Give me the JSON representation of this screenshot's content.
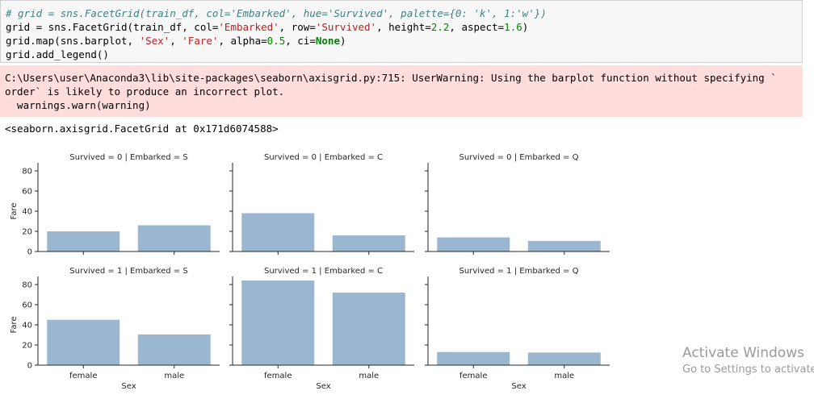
{
  "cell": {
    "comment": "# grid = sns.FacetGrid(train_df, col='Embarked', hue='Survived', palette={0: 'k', 1:'w'})",
    "line2a": "grid = sns.FacetGrid(train_df, col=",
    "line2b": "'Embarked'",
    "line2c": ", row=",
    "line2d": "'Survived'",
    "line2e": ", height=",
    "line2f": "2.2",
    "line2g": ", aspect=",
    "line2h": "1.6",
    "line2i": ")",
    "line3a": "grid.map(sns.barplot, ",
    "line3b": "'Sex'",
    "line3c": ", ",
    "line3d": "'Fare'",
    "line3e": ", alpha=",
    "line3f": "0.5",
    "line3g": ", ci=",
    "line3h": "None",
    "line3i": ")",
    "line4": "grid.add_legend()"
  },
  "warning": {
    "line1": "C:\\Users\\user\\Anaconda3\\lib\\site-packages\\seaborn\\axisgrid.py:715: UserWarning: Using the barplot function without specifying `",
    "line2": "order` is likely to produce an incorrect plot.",
    "line3": "  warnings.warn(warning)"
  },
  "output_repr": "<seaborn.axisgrid.FacetGrid at 0x171d6074588>",
  "watermark": {
    "title": "Activate Windows",
    "subtitle": "Go to Settings to activate"
  },
  "chart_data": {
    "type": "bar",
    "bar_color": "#9ab7cf",
    "xlabel": "Sex",
    "ylabel": "Fare",
    "ylim": [
      0,
      88
    ],
    "yticks": [
      0,
      20,
      40,
      60,
      80
    ],
    "categories": [
      "female",
      "male"
    ],
    "facets": [
      {
        "title": "Survived = 0 | Embarked = S",
        "values": [
          20,
          26
        ]
      },
      {
        "title": "Survived = 0 | Embarked = C",
        "values": [
          38,
          16
        ]
      },
      {
        "title": "Survived = 0 | Embarked = Q",
        "values": [
          14,
          10.5
        ]
      },
      {
        "title": "Survived = 1 | Embarked = S",
        "values": [
          45,
          30.5
        ]
      },
      {
        "title": "Survived = 1 | Embarked = C",
        "values": [
          84,
          72
        ]
      },
      {
        "title": "Survived = 1 | Embarked = Q",
        "values": [
          13,
          12.5
        ]
      }
    ]
  }
}
